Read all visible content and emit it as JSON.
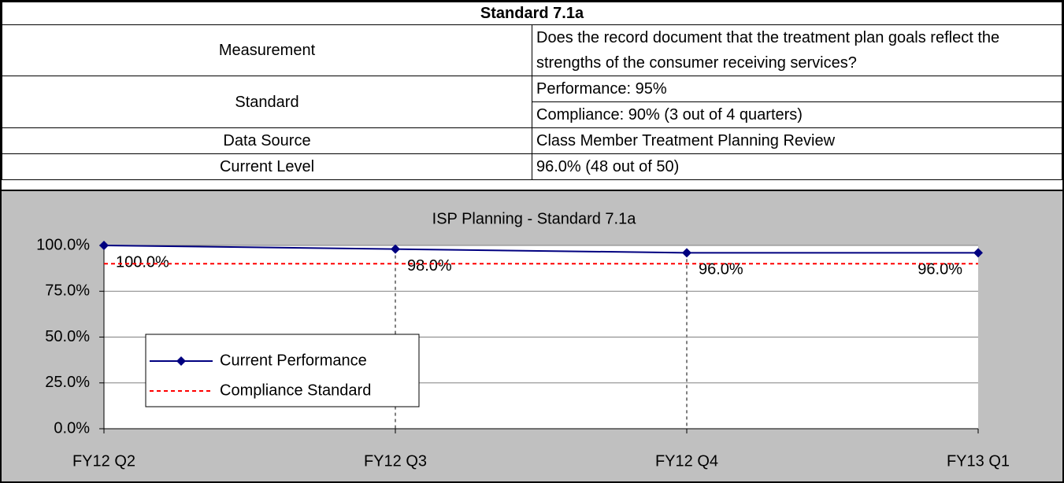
{
  "table": {
    "title": "Standard 7.1a",
    "rows": [
      {
        "label": "Measurement",
        "values": [
          "Does the record document that the treatment plan goals reflect the strengths of the consumer receiving services?"
        ]
      },
      {
        "label": "Standard",
        "values": [
          "Performance: 95%",
          "Compliance: 90% (3 out of 4 quarters)"
        ]
      },
      {
        "label": "Data Source",
        "values": [
          "Class Member Treatment Planning Review"
        ]
      },
      {
        "label": "Current Level",
        "values": [
          "96.0% (48 out of 50)"
        ]
      }
    ]
  },
  "chart_data": {
    "type": "line",
    "title": "ISP Planning - Standard 7.1a",
    "categories": [
      "FY12 Q2",
      "FY12 Q3",
      "FY12 Q4",
      "FY13 Q1"
    ],
    "series": [
      {
        "name": "Current Performance",
        "color": "#000080",
        "values": [
          100,
          98,
          96,
          96
        ],
        "value_labels": [
          "100.0%",
          "98.0%",
          "96.0%",
          "96.0%"
        ]
      },
      {
        "name": "Compliance Standard",
        "color": "#ff0000",
        "dashed": true,
        "values": [
          90,
          90,
          90,
          90
        ]
      }
    ],
    "ylim": [
      0,
      100
    ],
    "yticks": [
      {
        "value": 0,
        "label": "0.0%"
      },
      {
        "value": 25,
        "label": "25.0%"
      },
      {
        "value": 50,
        "label": "50.0%"
      },
      {
        "value": 75,
        "label": "75.0%"
      },
      {
        "value": 100,
        "label": "100.0%"
      }
    ],
    "grid": true
  }
}
